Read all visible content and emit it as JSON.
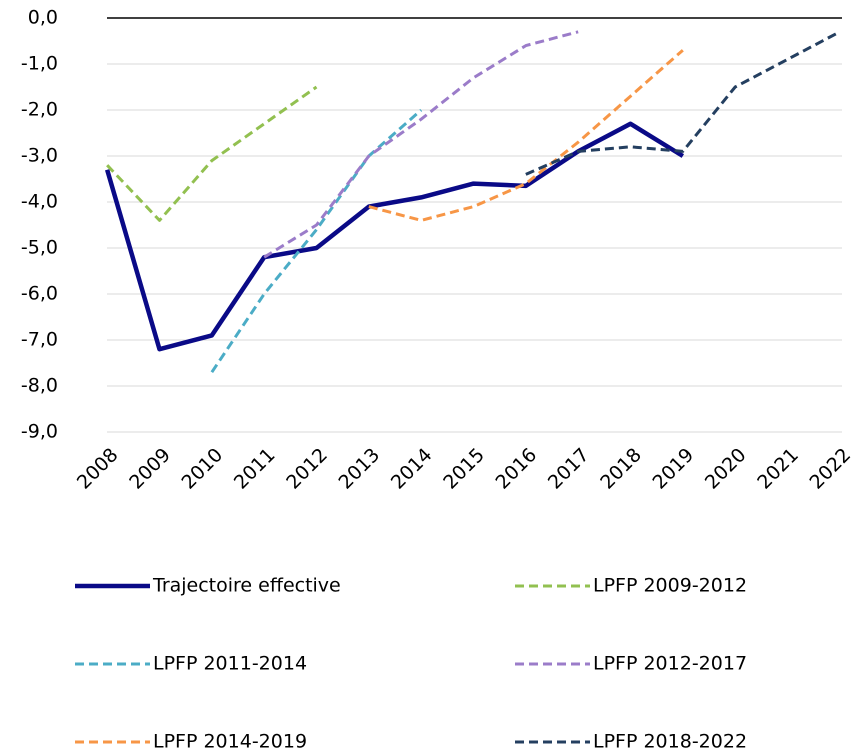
{
  "chart_data": {
    "type": "line",
    "categories": [
      "2008",
      "2009",
      "2010",
      "2011",
      "2012",
      "2013",
      "2014",
      "2015",
      "2016",
      "2017",
      "2018",
      "2019",
      "2020",
      "2021",
      "2022"
    ],
    "ylim": [
      -9,
      0
    ],
    "yticks": [
      {
        "value": 0,
        "label": "0,0"
      },
      {
        "value": -1,
        "label": "-1,0"
      },
      {
        "value": -2,
        "label": "-2,0"
      },
      {
        "value": -3,
        "label": "-3,0"
      },
      {
        "value": -4,
        "label": "-4,0"
      },
      {
        "value": -5,
        "label": "-5,0"
      },
      {
        "value": -6,
        "label": "-6,0"
      },
      {
        "value": -7,
        "label": "-7,0"
      },
      {
        "value": -8,
        "label": "-8,0"
      },
      {
        "value": -9,
        "label": "-9,0"
      }
    ],
    "grid": true,
    "series": [
      {
        "name": "Trajectoire effective",
        "color": "#0a0a87",
        "dash": false,
        "values": [
          -3.3,
          -7.2,
          -6.9,
          -5.2,
          -5.0,
          -4.1,
          -3.9,
          -3.6,
          -3.65,
          -2.9,
          -2.3,
          -3.0,
          null,
          null,
          null
        ]
      },
      {
        "name": "LPFP 2009-2012",
        "color": "#92c050",
        "dash": true,
        "values": [
          -3.2,
          -4.4,
          -3.1,
          -2.3,
          -1.5,
          null,
          null,
          null,
          null,
          null,
          null,
          null,
          null,
          null,
          null
        ]
      },
      {
        "name": "LPFP 2011-2014",
        "color": "#4bacc6",
        "dash": true,
        "values": [
          null,
          null,
          -7.7,
          -6.0,
          -4.6,
          -3.0,
          -2.0,
          null,
          null,
          null,
          null,
          null,
          null,
          null,
          null
        ]
      },
      {
        "name": "LPFP 2012-2017",
        "color": "#9b7cc9",
        "dash": true,
        "values": [
          null,
          null,
          null,
          -5.2,
          -4.5,
          -3.0,
          -2.2,
          -1.3,
          -0.6,
          -0.3,
          null,
          null,
          null,
          null,
          null
        ]
      },
      {
        "name": "LPFP 2014-2019",
        "color": "#f79646",
        "dash": true,
        "values": [
          null,
          null,
          null,
          null,
          null,
          -4.1,
          -4.4,
          -4.1,
          -3.6,
          -2.7,
          -1.7,
          -0.7,
          null,
          null,
          null
        ]
      },
      {
        "name": "LPFP 2018-2022",
        "color": "#243f60",
        "dash": true,
        "values": [
          null,
          null,
          null,
          null,
          null,
          null,
          null,
          null,
          -3.4,
          -2.9,
          -2.8,
          -2.9,
          -1.5,
          -0.9,
          -0.3
        ]
      }
    ]
  }
}
